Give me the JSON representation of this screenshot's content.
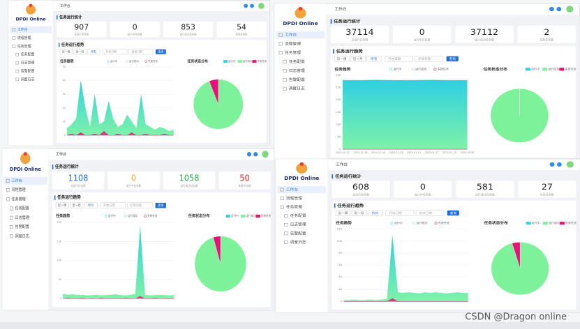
{
  "watermark": "CSDN @Dragon online",
  "panels": [
    {
      "brand": "DPDI Online",
      "tab": "工作台",
      "menu": [
        "工作台",
        "流程管理",
        "任务管理",
        "任务配置",
        "日志管理",
        "告警配置",
        "调度日志"
      ],
      "stats_title": "任务运行统计",
      "stats": [
        {
          "label": "总运行任务数",
          "value": 907
        },
        {
          "label": "运行中任务数",
          "value": 0
        },
        {
          "label": "运行成功任务数",
          "value": 853
        },
        {
          "label": "失败任务数",
          "value": 54
        }
      ],
      "stat_colors": [
        "#222",
        "#222",
        "#222",
        "#222"
      ],
      "trend_title": "任务运行趋势",
      "buttons": [
        "近一周",
        "近一月",
        "所有"
      ],
      "date_from": "开始日期",
      "date_to": "结束日期",
      "query": "查询",
      "chart_title": "任务趋势",
      "pie_title": "任务状态分布",
      "x": [
        null,
        null,
        null,
        null,
        null,
        null,
        null,
        null,
        null,
        null,
        null,
        null,
        null,
        null,
        null,
        null,
        null,
        null,
        null,
        null,
        null,
        null,
        null,
        null
      ],
      "ylim": [
        0,
        50
      ],
      "yticks": [
        0,
        10,
        20,
        30,
        40,
        50
      ],
      "series": [
        {
          "name": "运行中",
          "color": "#36d1e0",
          "values": [
            0,
            0,
            0,
            0,
            0,
            0,
            0,
            0,
            0,
            0,
            0,
            0,
            0,
            0,
            0,
            0,
            0,
            0,
            0,
            0,
            0,
            0,
            0,
            0
          ]
        },
        {
          "name": "运行成功",
          "color": "#7ef29a",
          "values": [
            5,
            8,
            12,
            40,
            20,
            6,
            30,
            8,
            10,
            25,
            12,
            6,
            8,
            15,
            10,
            5,
            30,
            8,
            6,
            4,
            6,
            5,
            3,
            4
          ]
        },
        {
          "name": "失败任务",
          "color": "#e8107a",
          "values": [
            0,
            1,
            0,
            2,
            0,
            0,
            1,
            0,
            3,
            0,
            0,
            1,
            0,
            0,
            2,
            0,
            0,
            1,
            0,
            0,
            0,
            1,
            0,
            0
          ]
        }
      ]
    },
    {
      "brand": "DPDI Online",
      "tab": "工作台",
      "menu": [
        "工作台",
        "流程管理",
        "任务管理",
        "任务配置",
        "日志管理",
        "告警配置",
        "调度日志"
      ],
      "stats_title": "任务运行统计",
      "stats": [
        {
          "label": "总运行任务数",
          "value": 37114
        },
        {
          "label": "运行中任务数",
          "value": 0
        },
        {
          "label": "运行成功任务数",
          "value": 37112
        },
        {
          "label": "失败任务数",
          "value": 2
        }
      ],
      "stat_colors": [
        "#222",
        "#222",
        "#222",
        "#222"
      ],
      "trend_title": "任务运行趋势",
      "buttons": [
        "近一周",
        "近一月",
        "所有"
      ],
      "date_from": "开始日期",
      "date_to": "结束日期",
      "query": "查询",
      "chart_title": "任务趋势",
      "pie_title": "任务状态分布",
      "x": [
        "2024-10-21",
        "2024-11-18",
        "2024-12-09",
        "2024-12-24",
        "2025-01-13",
        "2025-01-27",
        "2025-02-15",
        "2025-03-06"
      ],
      "ylim": [
        0,
        300
      ],
      "yticks": [
        0,
        50,
        100,
        150,
        200,
        250,
        300
      ],
      "series": [
        {
          "name": "运行中",
          "color": "#36d1e0",
          "values": [
            0,
            0,
            0,
            0,
            0,
            0,
            0,
            0
          ]
        },
        {
          "name": "运行成功",
          "color": "#7ef29a",
          "values": [
            280,
            280,
            281,
            280,
            280,
            281,
            280,
            280
          ]
        },
        {
          "name": "失败任务",
          "color": "#e8107a",
          "values": [
            0,
            0,
            0,
            0,
            0,
            0,
            0,
            0
          ]
        }
      ]
    },
    {
      "brand": "DPDI Online",
      "tab": "工作台",
      "menu": [
        "工作台",
        "流程管理",
        "任务管理",
        "任务配置",
        "日志管理",
        "告警配置",
        "调度日志"
      ],
      "stats_title": "任务运行统计",
      "stats": [
        {
          "label": "总运行任务数",
          "value": 1108
        },
        {
          "label": "运行中任务数",
          "value": 0
        },
        {
          "label": "运行成功任务数",
          "value": 1058
        },
        {
          "label": "失败任务数",
          "value": 50
        }
      ],
      "stat_colors": [
        "#1e6fd9",
        "#f5a623",
        "#2eaa4f",
        "#e02020"
      ],
      "trend_title": "任务运行趋势",
      "buttons": [
        "近一周",
        "近一月",
        "所有"
      ],
      "date_from": "开始日期",
      "date_to": "结束日期",
      "query": "查询",
      "chart_title": "任务趋势",
      "pie_title": "任务状态分布",
      "x": [
        null,
        null,
        null,
        null,
        null,
        null,
        null,
        null,
        null,
        null,
        null,
        null,
        null,
        null,
        null,
        null,
        null,
        null,
        null,
        null,
        null,
        null,
        null,
        null
      ],
      "ylim": [
        0,
        200
      ],
      "yticks": [
        0,
        50,
        100,
        150,
        200
      ],
      "series": [
        {
          "name": "运行中",
          "color": "#36d1e0",
          "values": [
            0,
            0,
            0,
            0,
            0,
            0,
            0,
            0,
            0,
            0,
            0,
            0,
            0,
            0,
            0,
            0,
            0,
            0,
            0,
            0,
            0,
            0,
            0,
            0
          ]
        },
        {
          "name": "运行成功",
          "color": "#7ef29a",
          "values": [
            12,
            10,
            11,
            9,
            10,
            8,
            9,
            10,
            8,
            9,
            10,
            11,
            9,
            8,
            10,
            12,
            190,
            10,
            8,
            9,
            10,
            9,
            8,
            9
          ]
        },
        {
          "name": "失败任务",
          "color": "#e8107a",
          "values": [
            0,
            1,
            0,
            0,
            1,
            0,
            0,
            0,
            1,
            0,
            0,
            0,
            0,
            1,
            0,
            0,
            6,
            0,
            0,
            1,
            0,
            0,
            0,
            0
          ]
        }
      ]
    },
    {
      "brand": "DPDI Online",
      "tab": "工作台",
      "menu": [
        "工作台",
        "流程管理",
        "任务管理",
        "任务配置",
        "日志管理",
        "告警配置",
        "调度日志"
      ],
      "stats_title": "任务运行统计",
      "stats": [
        {
          "label": "总运行任务数",
          "value": 608
        },
        {
          "label": "运行中任务数",
          "value": 0
        },
        {
          "label": "运行成功任务数",
          "value": 581
        },
        {
          "label": "失败任务数",
          "value": 27
        }
      ],
      "stat_colors": [
        "#222",
        "#222",
        "#222",
        "#222"
      ],
      "trend_title": "任务运行趋势",
      "buttons": [
        "近一周",
        "近一月",
        "所有"
      ],
      "date_from": "开始日期",
      "date_to": "结束日期",
      "query": "查询",
      "chart_title": "任务趋势",
      "pie_title": "任务状态分布",
      "x": [
        null,
        null,
        null,
        null,
        null,
        null,
        null,
        null,
        null,
        null,
        null,
        null,
        null,
        null,
        null,
        null,
        null,
        null,
        null,
        null,
        null,
        null,
        null,
        null
      ],
      "ylim": [
        0,
        120
      ],
      "yticks": [
        0,
        20,
        40,
        60,
        80,
        100,
        120
      ],
      "series": [
        {
          "name": "运行中",
          "color": "#36d1e0",
          "values": [
            0,
            0,
            0,
            0,
            0,
            0,
            0,
            0,
            0,
            0,
            0,
            0,
            0,
            0,
            0,
            0,
            0,
            0,
            0,
            0,
            0,
            0,
            0,
            0
          ]
        },
        {
          "name": "运行成功",
          "color": "#7ef29a",
          "values": [
            2,
            2,
            3,
            2,
            2,
            3,
            2,
            3,
            4,
            110,
            15,
            14,
            15,
            14,
            13,
            15,
            14,
            15,
            14,
            13,
            14,
            15,
            14,
            14
          ]
        },
        {
          "name": "失败任务",
          "color": "#e8107a",
          "values": [
            0,
            0,
            0,
            0,
            0,
            0,
            0,
            0,
            0,
            5,
            0,
            0,
            0,
            0,
            0,
            0,
            0,
            0,
            0,
            0,
            0,
            0,
            0,
            0
          ]
        }
      ]
    }
  ]
}
